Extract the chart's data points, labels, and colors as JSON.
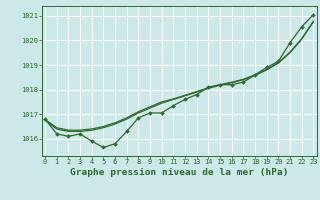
{
  "title": "Graphe pression niveau de la mer (hPa)",
  "background_color": "#cce8e8",
  "grid_color": "#b0d8d8",
  "line_color": "#2d6a2d",
  "x_hours": [
    0,
    1,
    2,
    3,
    4,
    5,
    6,
    7,
    8,
    9,
    10,
    11,
    12,
    13,
    14,
    15,
    16,
    17,
    18,
    19,
    20,
    21,
    22,
    23
  ],
  "y_main": [
    1016.8,
    1016.2,
    1016.1,
    1016.2,
    1015.9,
    1015.65,
    1015.8,
    1016.3,
    1016.85,
    1017.05,
    1017.05,
    1017.35,
    1017.6,
    1017.8,
    1018.1,
    1018.2,
    1018.2,
    1018.3,
    1018.6,
    1018.9,
    1019.15,
    1019.9,
    1020.55,
    1021.05
  ],
  "y_smooth1": [
    1016.75,
    1016.4,
    1016.3,
    1016.3,
    1016.35,
    1016.45,
    1016.6,
    1016.8,
    1017.05,
    1017.25,
    1017.45,
    1017.6,
    1017.75,
    1017.9,
    1018.05,
    1018.18,
    1018.28,
    1018.4,
    1018.58,
    1018.8,
    1019.08,
    1019.5,
    1020.05,
    1020.75
  ],
  "y_smooth2": [
    1016.78,
    1016.45,
    1016.35,
    1016.35,
    1016.4,
    1016.5,
    1016.65,
    1016.85,
    1017.1,
    1017.3,
    1017.5,
    1017.62,
    1017.77,
    1017.92,
    1018.07,
    1018.2,
    1018.3,
    1018.42,
    1018.6,
    1018.82,
    1019.1,
    1019.52,
    1020.07,
    1020.78
  ],
  "ylim": [
    1015.3,
    1021.4
  ],
  "yticks": [
    1016,
    1017,
    1018,
    1019,
    1020,
    1021
  ],
  "xticks": [
    0,
    1,
    2,
    3,
    4,
    5,
    6,
    7,
    8,
    9,
    10,
    11,
    12,
    13,
    14,
    15,
    16,
    17,
    18,
    19,
    20,
    21,
    22,
    23
  ],
  "tick_fontsize": 5.0,
  "title_fontsize": 6.8
}
